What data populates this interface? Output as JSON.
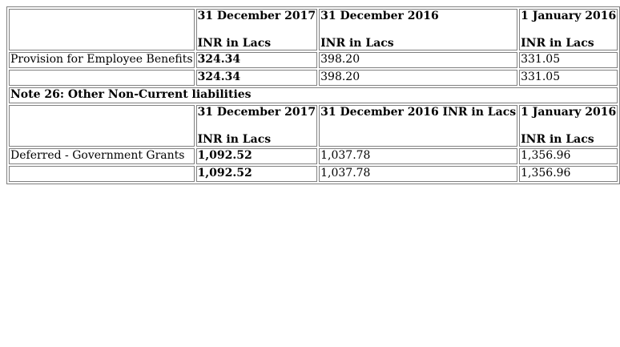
{
  "table1": {
    "header": {
      "col2_date": "31 December 2017",
      "col2_unit": "INR in Lacs",
      "col3_date": "31 December 2016",
      "col3_unit": "INR in Lacs",
      "col4_date": "1 January 2016",
      "col4_unit": "INR in Lacs"
    },
    "rows": [
      {
        "label": "Provision for Employee Benefits",
        "v2017": "324.34",
        "v2016": "398.20",
        "v2016jan": "331.05"
      },
      {
        "label": "",
        "v2017": "324.34",
        "v2016": "398.20",
        "v2016jan": "331.05"
      }
    ]
  },
  "note26": {
    "title": "Note 26: Other Non-Current liabilities",
    "header": {
      "col2_date": "31 December 2017",
      "col2_unit": "INR in Lacs",
      "col3_combined": "31 December 2016 INR in Lacs",
      "col4_date": "1 January 2016",
      "col4_unit": "INR in Lacs"
    },
    "rows": [
      {
        "label": "Deferred - Government Grants",
        "v2017": "1,092.52",
        "v2016": "1,037.78",
        "v2016jan": "1,356.96"
      },
      {
        "label": "",
        "v2017": "1,092.52",
        "v2016": "1,037.78",
        "v2016jan": "1,356.96"
      }
    ]
  }
}
